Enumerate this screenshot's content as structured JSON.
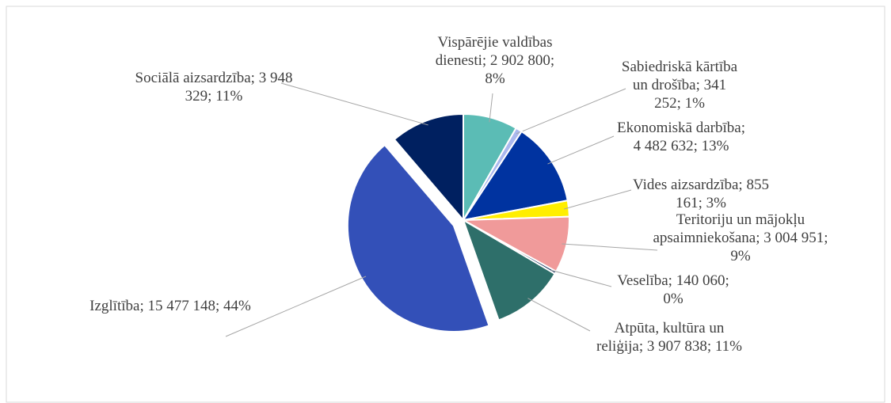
{
  "chart_data": {
    "type": "pie",
    "label_separator": "; ",
    "categories": [
      "Vispārējie valdības dienesti",
      "Sabiedriskā kārtība un drošība",
      "Ekonomiskā darbība",
      "Vides aizsardzība",
      "Teritoriju un mājokļu apsaimniekošana",
      "Veselība",
      "Atpūta, kultūra un reliģija",
      "Izglītība",
      "Sociālā aizsardzība"
    ],
    "values": [
      2902800,
      341252,
      4482632,
      855161,
      3004951,
      140060,
      3907838,
      15477148,
      3948329
    ],
    "value_labels": [
      "2 902 800",
      "341 252",
      "4 482 632",
      "855 161",
      "3 004 951",
      "140 060",
      "3 907 838",
      "15 477 148",
      "3 948 329"
    ],
    "percent_labels": [
      "8%",
      "1%",
      "13%",
      "3%",
      "9%",
      "0%",
      "11%",
      "44%",
      "11%"
    ],
    "colors": [
      "#5bbcb5",
      "#aab8ee",
      "#0033a0",
      "#ffee00",
      "#f09a9a",
      "#1f3864",
      "#2e6f6a",
      "#3350b8",
      "#002060"
    ],
    "exploded": [
      7
    ]
  }
}
